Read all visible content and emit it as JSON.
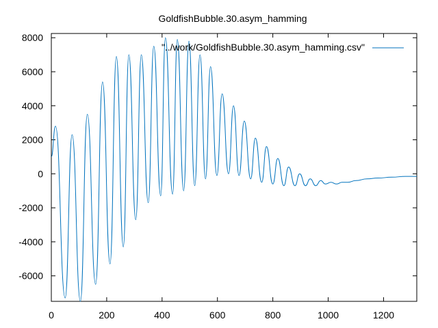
{
  "chart_data": {
    "type": "line",
    "title": "GoldfishBubble.30.asym_hamming",
    "xlabel": "",
    "ylabel": "",
    "xlim": [
      0,
      1320
    ],
    "ylim": [
      -7500,
      8250
    ],
    "x_ticks": [
      0,
      200,
      400,
      600,
      800,
      1000,
      1200
    ],
    "y_ticks": [
      -6000,
      -4000,
      -2000,
      0,
      2000,
      4000,
      6000,
      8000
    ],
    "x_tick_labels": [
      "0",
      "200",
      "400",
      "600",
      "800",
      "1000",
      "1200"
    ],
    "y_tick_labels": [
      "-6000",
      "-4000",
      "-2000",
      "0",
      "2000",
      "4000",
      "6000",
      "8000"
    ],
    "grid": false,
    "legend_position": "top-right",
    "series": [
      {
        "name": "\"../work/GoldfishBubble.30.asym_hamming.csv\"",
        "color": "#0072bd",
        "x": [
          0,
          15,
          50,
          75,
          105,
          130,
          160,
          185,
          212,
          235,
          260,
          280,
          305,
          325,
          350,
          370,
          395,
          412,
          438,
          455,
          478,
          497,
          518,
          537,
          557,
          575,
          598,
          617,
          640,
          658,
          678,
          697,
          720,
          737,
          760,
          777,
          800,
          818,
          840,
          857,
          880,
          897,
          918,
          935,
          955,
          973,
          990,
          1010,
          1030,
          1050,
          1070,
          1100,
          1140,
          1180,
          1230,
          1280,
          1320
        ],
        "values": [
          1000,
          2800,
          -7300,
          2300,
          -7500,
          3500,
          -6500,
          5400,
          -5300,
          6900,
          -4300,
          7000,
          -2700,
          7000,
          -1700,
          7500,
          -1300,
          8000,
          -1200,
          7900,
          -1000,
          7800,
          -700,
          7000,
          -300,
          6300,
          -100,
          4700,
          0,
          4000,
          -100,
          3100,
          -300,
          2100,
          -500,
          1600,
          -600,
          900,
          -700,
          400,
          -700,
          0,
          -700,
          -300,
          -700,
          -400,
          -600,
          -500,
          -600,
          -500,
          -500,
          -400,
          -300,
          -250,
          -200,
          -150,
          -150
        ]
      }
    ]
  }
}
